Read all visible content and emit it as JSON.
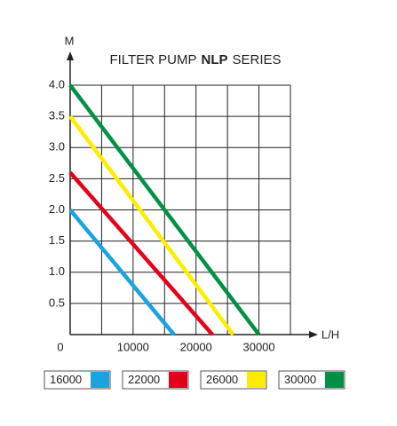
{
  "chart_data": {
    "type": "line",
    "title": {
      "before": "FILTER PUMP",
      "bold": "NLP",
      "after": "SERIES"
    },
    "y_label": "M",
    "x_label": "L/H",
    "xlim": [
      0,
      35000
    ],
    "ylim": [
      0,
      4
    ],
    "xticks": [
      0,
      10000,
      20000,
      30000
    ],
    "xminorticks": [
      5000,
      15000,
      25000
    ],
    "yticks": [
      {
        "value": 0.5,
        "label": "0.5"
      },
      {
        "value": 1,
        "label": "1.0"
      },
      {
        "value": 1.5,
        "label": "1.5"
      },
      {
        "value": 2,
        "label": "2.0"
      },
      {
        "value": 2.5,
        "label": "2.5"
      },
      {
        "value": 3,
        "label": "3.0"
      },
      {
        "value": 3.5,
        "label": "3.5"
      },
      {
        "value": 4,
        "label": "4.0"
      }
    ],
    "grid": true,
    "series": [
      {
        "name": "16000",
        "color": "#1aa3e0",
        "x": [
          0,
          16500
        ],
        "values": [
          2.0,
          0
        ]
      },
      {
        "name": "22000",
        "color": "#e2001a",
        "x": [
          0,
          22600
        ],
        "values": [
          2.6,
          0
        ]
      },
      {
        "name": "26000",
        "color": "#ffed00",
        "x": [
          0,
          25900
        ],
        "values": [
          3.5,
          0
        ]
      },
      {
        "name": "30000",
        "color": "#009045",
        "x": [
          0,
          30000
        ],
        "values": [
          4.0,
          0
        ]
      }
    ]
  }
}
